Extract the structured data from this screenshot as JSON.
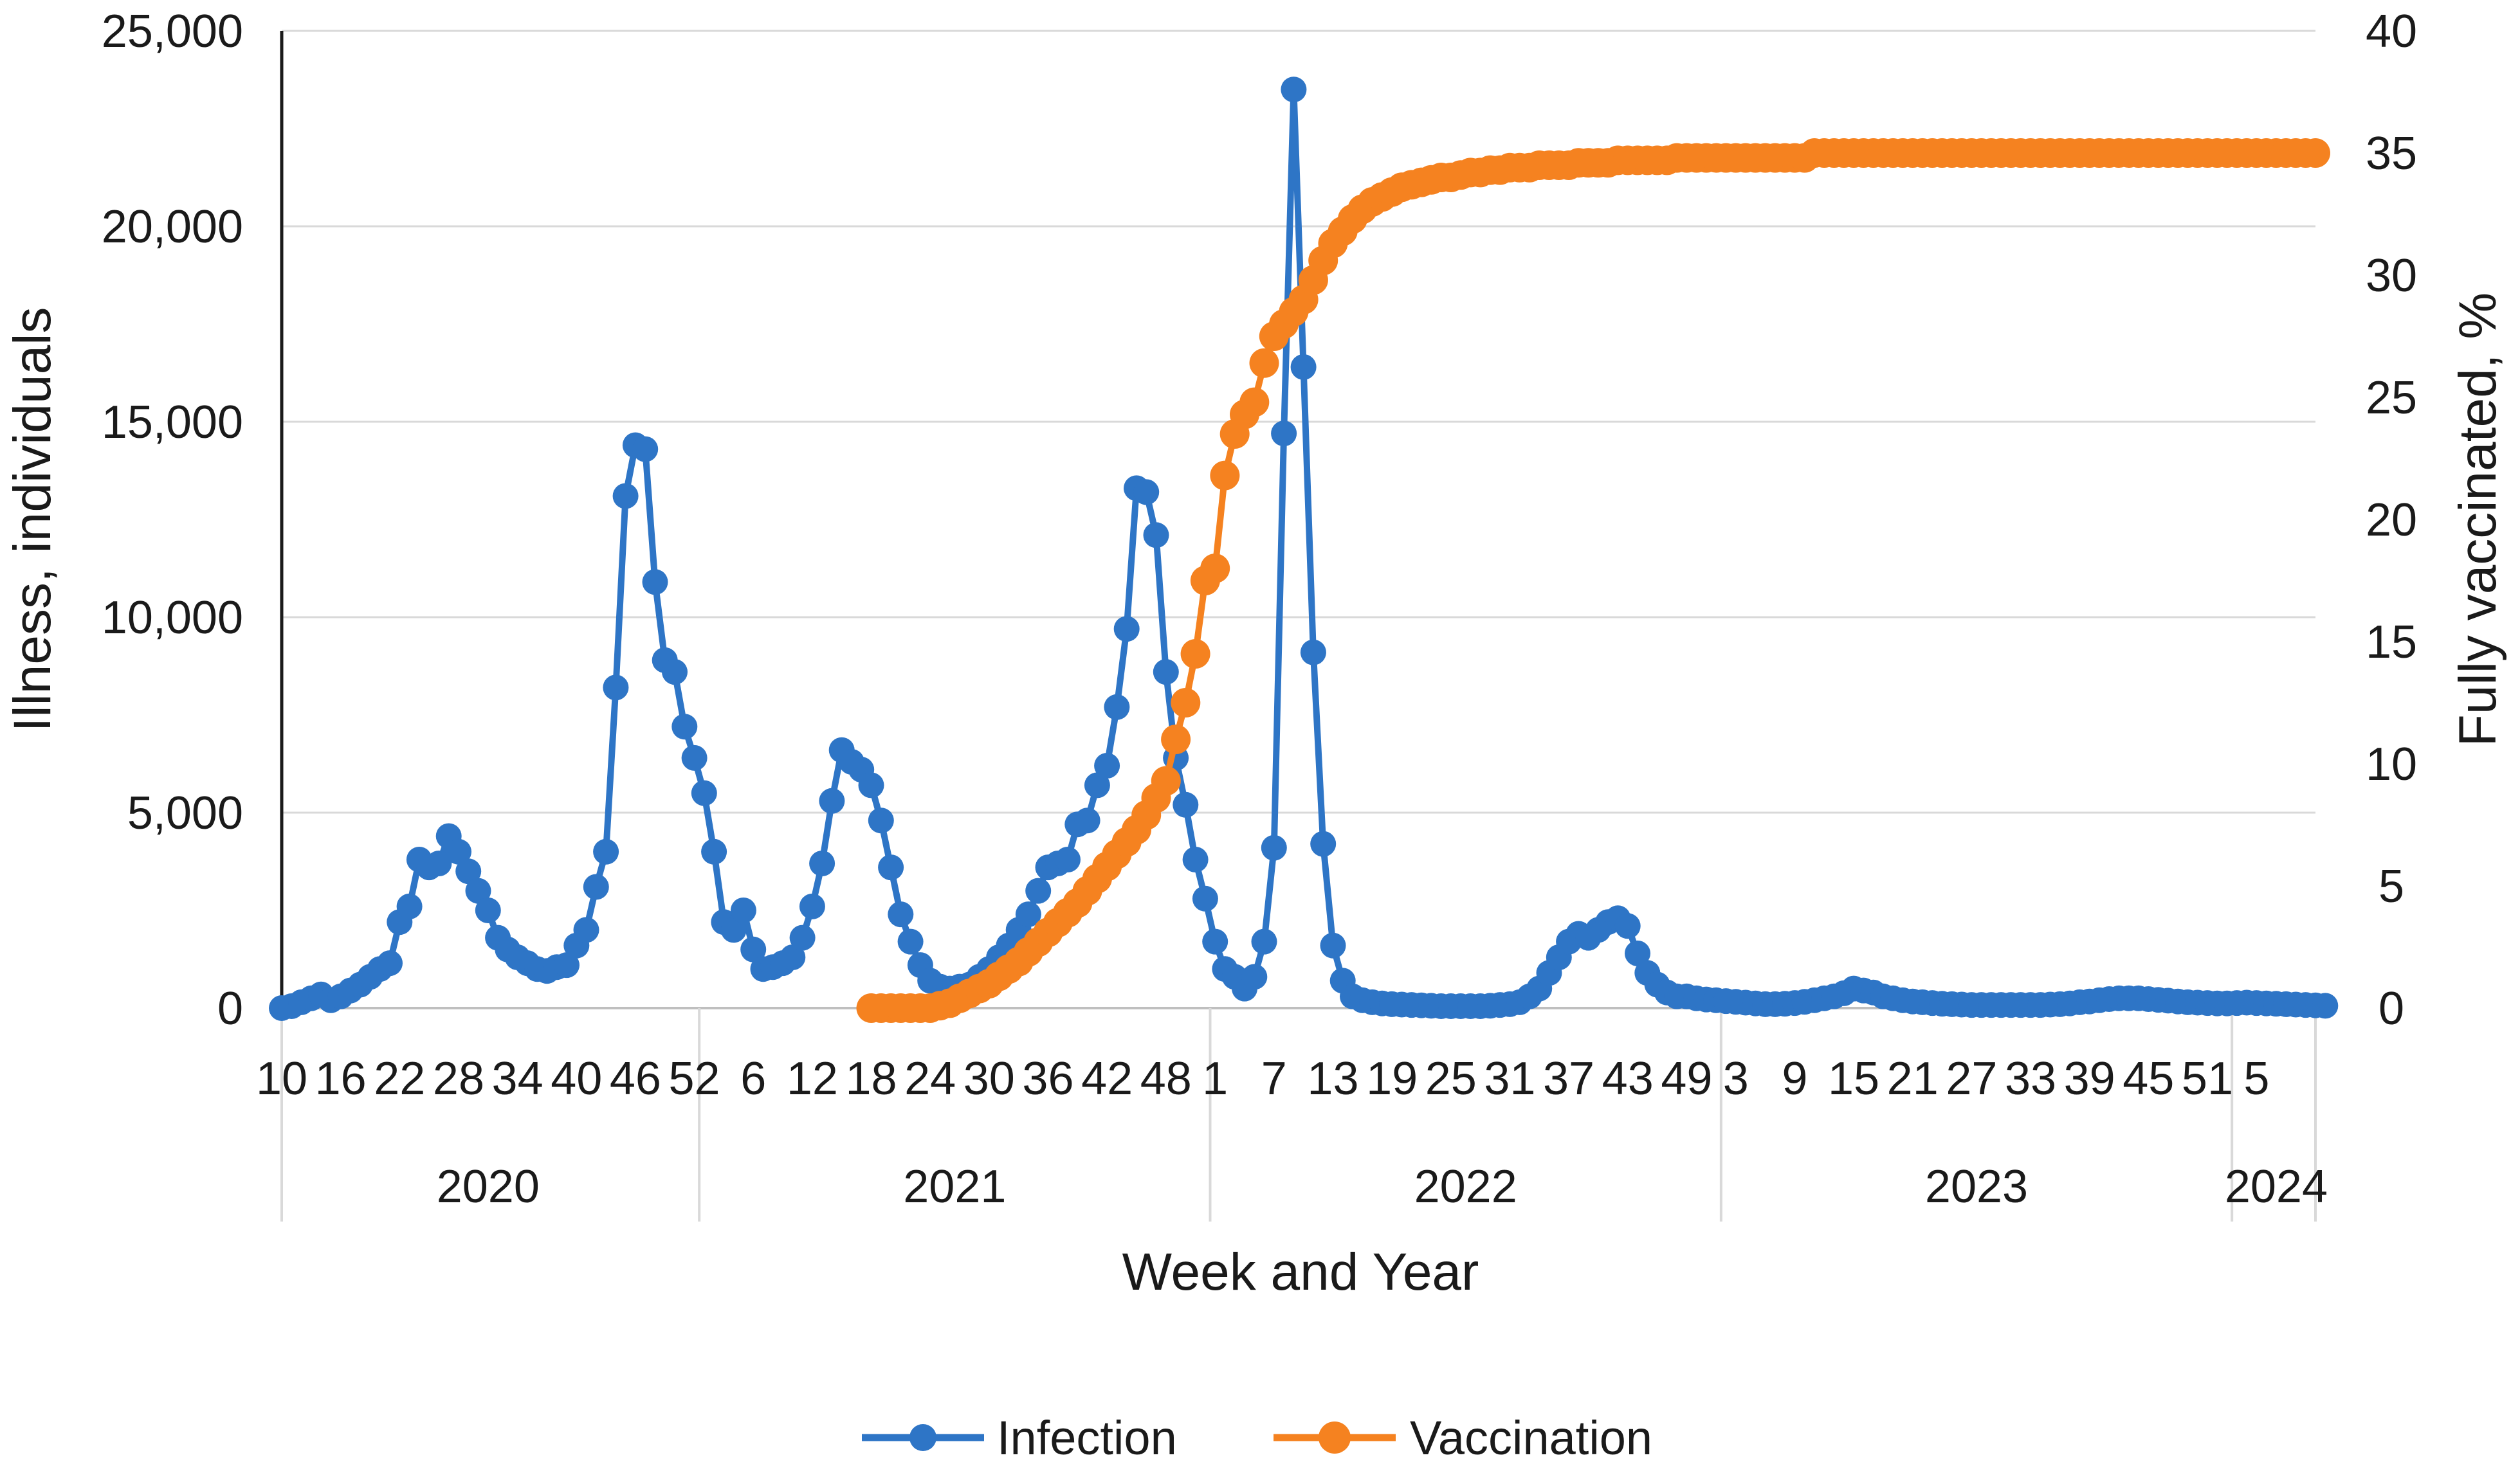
{
  "chart_data": {
    "type": "line",
    "title": "",
    "xlabel": "Week and Year",
    "ylabel": "Illness, individuals",
    "y2label": "Fully vaccinated, %",
    "ylim": [
      0,
      25000
    ],
    "y2lim": [
      0,
      40
    ],
    "yticks": [
      "0",
      "5,000",
      "10,000",
      "15,000",
      "20,000",
      "25,000"
    ],
    "y2ticks": [
      "0",
      "5",
      "10",
      "15",
      "20",
      "25",
      "30",
      "35",
      "40"
    ],
    "grid": true,
    "legend_position": "bottom",
    "x_week_start": 10,
    "x_index_range": [
      0,
      207
    ],
    "week_tick_labels": [
      {
        "i": 0,
        "label": "10"
      },
      {
        "i": 6,
        "label": "16"
      },
      {
        "i": 12,
        "label": "22"
      },
      {
        "i": 18,
        "label": "28"
      },
      {
        "i": 24,
        "label": "34"
      },
      {
        "i": 30,
        "label": "40"
      },
      {
        "i": 36,
        "label": "46"
      },
      {
        "i": 42,
        "label": "52"
      },
      {
        "i": 48,
        "label": "6"
      },
      {
        "i": 54,
        "label": "12"
      },
      {
        "i": 60,
        "label": "18"
      },
      {
        "i": 66,
        "label": "24"
      },
      {
        "i": 72,
        "label": "30"
      },
      {
        "i": 78,
        "label": "36"
      },
      {
        "i": 84,
        "label": "42"
      },
      {
        "i": 90,
        "label": "48"
      },
      {
        "i": 95,
        "label": "1"
      },
      {
        "i": 101,
        "label": "7"
      },
      {
        "i": 107,
        "label": "13"
      },
      {
        "i": 113,
        "label": "19"
      },
      {
        "i": 119,
        "label": "25"
      },
      {
        "i": 125,
        "label": "31"
      },
      {
        "i": 131,
        "label": "37"
      },
      {
        "i": 137,
        "label": "43"
      },
      {
        "i": 143,
        "label": "49"
      },
      {
        "i": 148,
        "label": "3"
      },
      {
        "i": 154,
        "label": "9"
      },
      {
        "i": 160,
        "label": "15"
      },
      {
        "i": 166,
        "label": "21"
      },
      {
        "i": 172,
        "label": "27"
      },
      {
        "i": 178,
        "label": "33"
      },
      {
        "i": 184,
        "label": "39"
      },
      {
        "i": 190,
        "label": "45"
      },
      {
        "i": 196,
        "label": "51"
      },
      {
        "i": 201,
        "label": "5"
      }
    ],
    "year_groups": [
      {
        "label": "2020",
        "start": 0,
        "end": 42
      },
      {
        "label": "2021",
        "start": 43,
        "end": 94
      },
      {
        "label": "2022",
        "start": 95,
        "end": 146
      },
      {
        "label": "2023",
        "start": 147,
        "end": 198
      },
      {
        "label": "2024",
        "start": 199,
        "end": 207
      }
    ],
    "series": [
      {
        "name": "Infection",
        "axis": "left",
        "color": "#2e75c6",
        "start_index": 0,
        "values": [
          0,
          50,
          150,
          250,
          350,
          200,
          300,
          450,
          600,
          800,
          1000,
          1150,
          2200,
          2600,
          3800,
          3600,
          3700,
          4400,
          4000,
          3500,
          3000,
          2500,
          1800,
          1500,
          1300,
          1150,
          1000,
          950,
          1050,
          1100,
          1600,
          2000,
          3100,
          4000,
          8200,
          13100,
          14400,
          14300,
          10900,
          8900,
          8600,
          7200,
          6400,
          5500,
          4000,
          2200,
          2000,
          2500,
          1500,
          1000,
          1050,
          1150,
          1300,
          1800,
          2600,
          3700,
          5300,
          6600,
          6300,
          6100,
          5700,
          4800,
          3600,
          2400,
          1700,
          1100,
          700,
          550,
          500,
          550,
          600,
          800,
          1000,
          1300,
          1600,
          2000,
          2400,
          3000,
          3600,
          3700,
          3800,
          4700,
          4800,
          5700,
          6200,
          7700,
          9700,
          13300,
          13200,
          12100,
          8600,
          6400,
          5200,
          3800,
          2800,
          1700,
          1000,
          800,
          500,
          800,
          1700,
          4100,
          14700,
          23500,
          16400,
          9100,
          4200,
          1600,
          700,
          300,
          200,
          150,
          120,
          100,
          90,
          80,
          70,
          60,
          50,
          50,
          50,
          50,
          50,
          60,
          80,
          100,
          150,
          300,
          500,
          900,
          1300,
          1700,
          1900,
          1800,
          2000,
          2200,
          2300,
          2100,
          1400,
          900,
          600,
          400,
          300,
          300,
          250,
          220,
          200,
          180,
          160,
          140,
          120,
          100,
          100,
          110,
          130,
          160,
          200,
          250,
          300,
          380,
          500,
          450,
          400,
          300,
          250,
          200,
          170,
          150,
          130,
          110,
          100,
          90,
          80,
          80,
          80,
          80,
          80,
          80,
          80,
          80,
          90,
          100,
          120,
          150,
          170,
          200,
          230,
          250,
          250,
          250,
          230,
          210,
          190,
          170,
          150,
          140,
          130,
          120,
          120,
          130,
          140,
          130,
          120,
          110,
          100,
          90,
          80,
          70,
          60
        ]
      },
      {
        "name": "Vaccination",
        "axis": "right",
        "color": "#f58220",
        "start_index": 60,
        "values": [
          0,
          0,
          0,
          0,
          0,
          0,
          0,
          0.1,
          0.2,
          0.4,
          0.6,
          0.8,
          1.0,
          1.3,
          1.6,
          1.9,
          2.3,
          2.7,
          3.1,
          3.5,
          3.9,
          4.3,
          4.8,
          5.3,
          5.8,
          6.3,
          6.8,
          7.3,
          7.9,
          8.6,
          9.3,
          11.0,
          12.5,
          14.5,
          17.5,
          18.0,
          21.8,
          23.5,
          24.3,
          24.8,
          26.4,
          27.5,
          28.0,
          28.5,
          29.0,
          29.8,
          30.6,
          31.3,
          31.8,
          32.3,
          32.7,
          33.0,
          33.2,
          33.4,
          33.6,
          33.7,
          33.8,
          33.9,
          34.0,
          34.0,
          34.1,
          34.2,
          34.2,
          34.3,
          34.3,
          34.4,
          34.4,
          34.4,
          34.5,
          34.5,
          34.5,
          34.5,
          34.6,
          34.6,
          34.6,
          34.6,
          34.7,
          34.7,
          34.7,
          34.7,
          34.7,
          34.7,
          34.8,
          34.8,
          34.8,
          34.8,
          34.8,
          34.8,
          34.8,
          34.8,
          34.8,
          34.8,
          34.8,
          34.8,
          34.8,
          34.8,
          35.0,
          35.0,
          35.0,
          35.0,
          35.0,
          35.0,
          35.0,
          35.0,
          35.0,
          35.0,
          35.0,
          35.0,
          35.0,
          35.0,
          35.0,
          35.0,
          35.0,
          35.0,
          35.0,
          35.0,
          35.0,
          35.0,
          35.0,
          35.0,
          35.0,
          35.0,
          35.0,
          35.0,
          35.0,
          35.0,
          35.0,
          35.0,
          35.0,
          35.0,
          35.0,
          35.0,
          35.0,
          35.0,
          35.0,
          35.0,
          35.0,
          35.0,
          35.0,
          35.0,
          35.0,
          35.0,
          35.0,
          35.0,
          35.0,
          35.0,
          35.0,
          35.0
        ]
      }
    ]
  }
}
